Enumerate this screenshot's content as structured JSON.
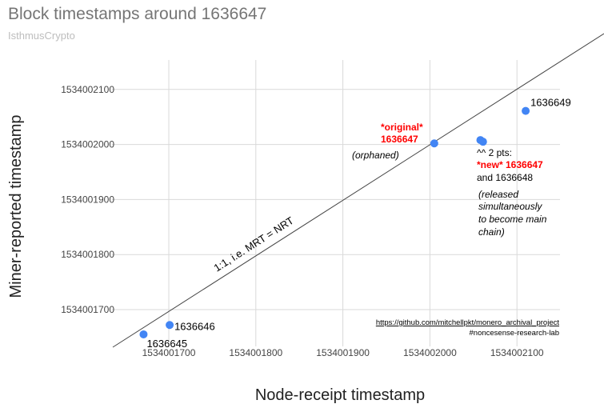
{
  "chart_data": {
    "type": "scatter",
    "title": "Block timestamps around 1636647",
    "subtitle": "IsthmusCrypto",
    "xlabel": "Node-receipt timestamp",
    "ylabel": "Miner-reported timestamp",
    "xlim": [
      1534001650,
      1534002150
    ],
    "ylim": [
      1534001650,
      1534002150
    ],
    "x_ticks": [
      1534001700,
      1534001800,
      1534001900,
      1534002000,
      1534002100
    ],
    "y_ticks": [
      1534001700,
      1534001800,
      1534001900,
      1534002000,
      1534002100
    ],
    "x_tick_labels": [
      "1534001700",
      "1534001800",
      "1534001900",
      "1534002000",
      "1534002100"
    ],
    "y_tick_labels": [
      "1534001700",
      "1534001800",
      "1534001900",
      "1534002000",
      "1534002100"
    ],
    "grid": true,
    "marker_color": "#4285f4",
    "annotation_color": "#ff0000",
    "points": [
      {
        "x": 1534001671,
        "y": 1534001655,
        "label": "1636645"
      },
      {
        "x": 1534001701,
        "y": 1534001672,
        "label": "1636646"
      },
      {
        "x": 1534002005,
        "y": 1534002002,
        "label": ""
      },
      {
        "x": 1534002058,
        "y": 1534002008,
        "label": ""
      },
      {
        "x": 1534002061,
        "y": 1534002005,
        "label": ""
      },
      {
        "x": 1534002110,
        "y": 1534002061,
        "label": "1636649"
      }
    ],
    "reference_line": {
      "label": "1:1, i.e. MRT = NRT",
      "slope": 1,
      "intercept": 0
    },
    "annotations": {
      "original_red": "*original*",
      "original_num": "1636647",
      "orphaned": "(orphaned)",
      "two_pts": "^^ 2 pts:",
      "new_red": "*new* 1636647",
      "and_num": "and 1636648",
      "released_1": "(released",
      "released_2": "simultaneously",
      "released_3": "to become main",
      "released_4": "chain)",
      "source_url": "https://github.com/mitchellpkt/monero_archival_project",
      "hashtag": "#noncesense-research-lab"
    }
  }
}
